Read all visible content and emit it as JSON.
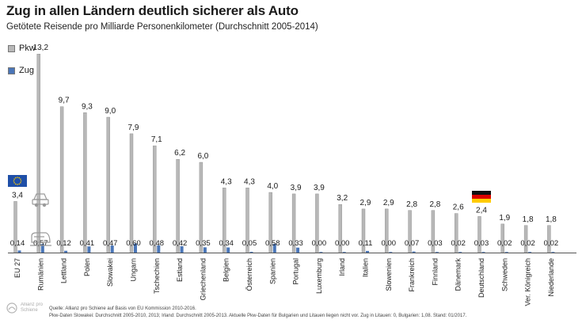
{
  "title": "Zug in allen Ländern deutlich sicherer als Auto",
  "subtitle": "Getötete Reisende pro Milliarde Personenkilometer (Durchschnitt 2005-2014)",
  "source_line1": "Quelle: Allianz pro Schiene auf Basis von EU Kommission 2010-2016.",
  "source_line2": "Pkw-Daten Slowakei: Durchschnitt 2005-2010, 2013; Irland: Durchschnitt 2005-2013. Aktuelle Pkw-Daten für Bulgarien und Litauen liegen nicht vor. Zug in Litauen: 0, Bulgarien: 1,08. Stand: 01/2017.",
  "logo_text": "Allianz pro Schiene",
  "colors": {
    "pkw": "#b8b8b8",
    "zug": "#4a76b8",
    "axis": "#555555"
  },
  "chart_data": {
    "type": "bar",
    "title": "Zug in allen Ländern deutlich sicherer als Auto",
    "subtitle": "Getötete Reisende pro Milliarde Personenkilometer (Durchschnitt 2005-2014)",
    "xlabel": "",
    "ylabel": "",
    "ylim": [
      0,
      14
    ],
    "grid": false,
    "legend_position": "top-left",
    "categories": [
      "EU 27",
      "Rumänien",
      "Lettland",
      "Polen",
      "Slowakei",
      "Ungarn",
      "Tschechien",
      "Estland",
      "Griechenland",
      "Belgien",
      "Österreich",
      "Spanien",
      "Portugal",
      "Luxemburg",
      "Irland",
      "Italien",
      "Slowenien",
      "Frankreich",
      "Finnland",
      "Dänemark",
      "Deutschland",
      "Schweden",
      "Ver. Königreich",
      "Niederlande"
    ],
    "series": [
      {
        "name": "Pkw",
        "values": [
          3.4,
          13.2,
          9.7,
          9.3,
          9.0,
          7.9,
          7.1,
          6.2,
          6.0,
          4.3,
          4.3,
          4.0,
          3.9,
          3.9,
          3.2,
          2.9,
          2.9,
          2.8,
          2.8,
          2.6,
          2.4,
          1.9,
          1.8,
          1.8
        ],
        "labels": [
          "3,4",
          "13,2",
          "9,7",
          "9,3",
          "9,0",
          "7,9",
          "7,1",
          "6,2",
          "6,0",
          "4,3",
          "4,3",
          "4,0",
          "3,9",
          "3,9",
          "3,2",
          "2,9",
          "2,9",
          "2,8",
          "2,8",
          "2,6",
          "2,4",
          "1,9",
          "1,8",
          "1,8"
        ]
      },
      {
        "name": "Zug",
        "values": [
          0.14,
          0.57,
          0.12,
          0.41,
          0.47,
          0.6,
          0.48,
          0.42,
          0.35,
          0.34,
          0.05,
          0.58,
          0.33,
          0.0,
          0.0,
          0.11,
          0.0,
          0.07,
          0.03,
          0.02,
          0.03,
          0.02,
          0.02,
          0.02
        ],
        "labels": [
          "0,14",
          "0,57",
          "0,12",
          "0,41",
          "0,47",
          "0,60",
          "0,48",
          "0,42",
          "0,35",
          "0,34",
          "0,05",
          "0,58",
          "0,33",
          "0,00",
          "0,00",
          "0,11",
          "0,00",
          "0,07",
          "0,03",
          "0,02",
          "0,03",
          "0,02",
          "0,02",
          "0,02"
        ]
      }
    ],
    "flags": [
      {
        "category": "EU 27",
        "flag": "eu-flag-icon"
      },
      {
        "category": "Deutschland",
        "flag": "germany-flag-icon"
      }
    ],
    "icons": [
      "car-icon",
      "train-icon"
    ]
  }
}
